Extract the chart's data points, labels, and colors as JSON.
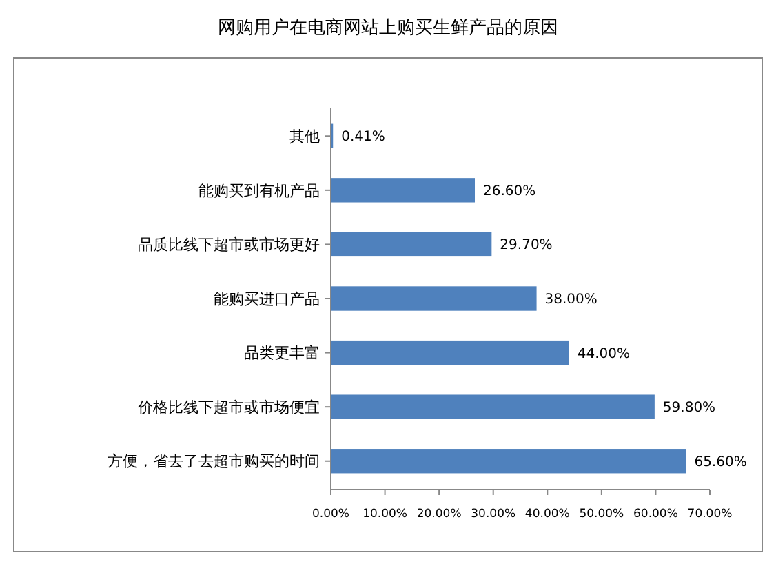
{
  "chart_data": {
    "type": "bar",
    "orientation": "horizontal",
    "title": "网购用户在电商网站上购买生鲜产品的原因",
    "categories": [
      "其他",
      "能购买到有机产品",
      "品质比线下超市或市场更好",
      "能购买进口产品",
      "品类更丰富",
      "价格比线下超市或市场便宜",
      "方便，省去了去超市购买的时间"
    ],
    "values": [
      0.41,
      26.6,
      29.7,
      38,
      44,
      59.8,
      65.6
    ],
    "value_labels": [
      "0.41%",
      "26.60%",
      "29.70%",
      "38.00%",
      "44.00%",
      "59.80%",
      "65.60%"
    ],
    "color": "#4f81bd",
    "xlim": [
      0,
      70
    ],
    "xticks": [
      {
        "value": 0,
        "label": "0.00%"
      },
      {
        "value": 10,
        "label": "10.00%"
      },
      {
        "value": 20,
        "label": "20.00%"
      },
      {
        "value": 30,
        "label": "30.00%"
      },
      {
        "value": 40,
        "label": "40.00%"
      },
      {
        "value": 50,
        "label": "50.00%"
      },
      {
        "value": 60,
        "label": "60.00%"
      },
      {
        "value": 70,
        "label": "70.00%"
      }
    ],
    "grid": false
  }
}
